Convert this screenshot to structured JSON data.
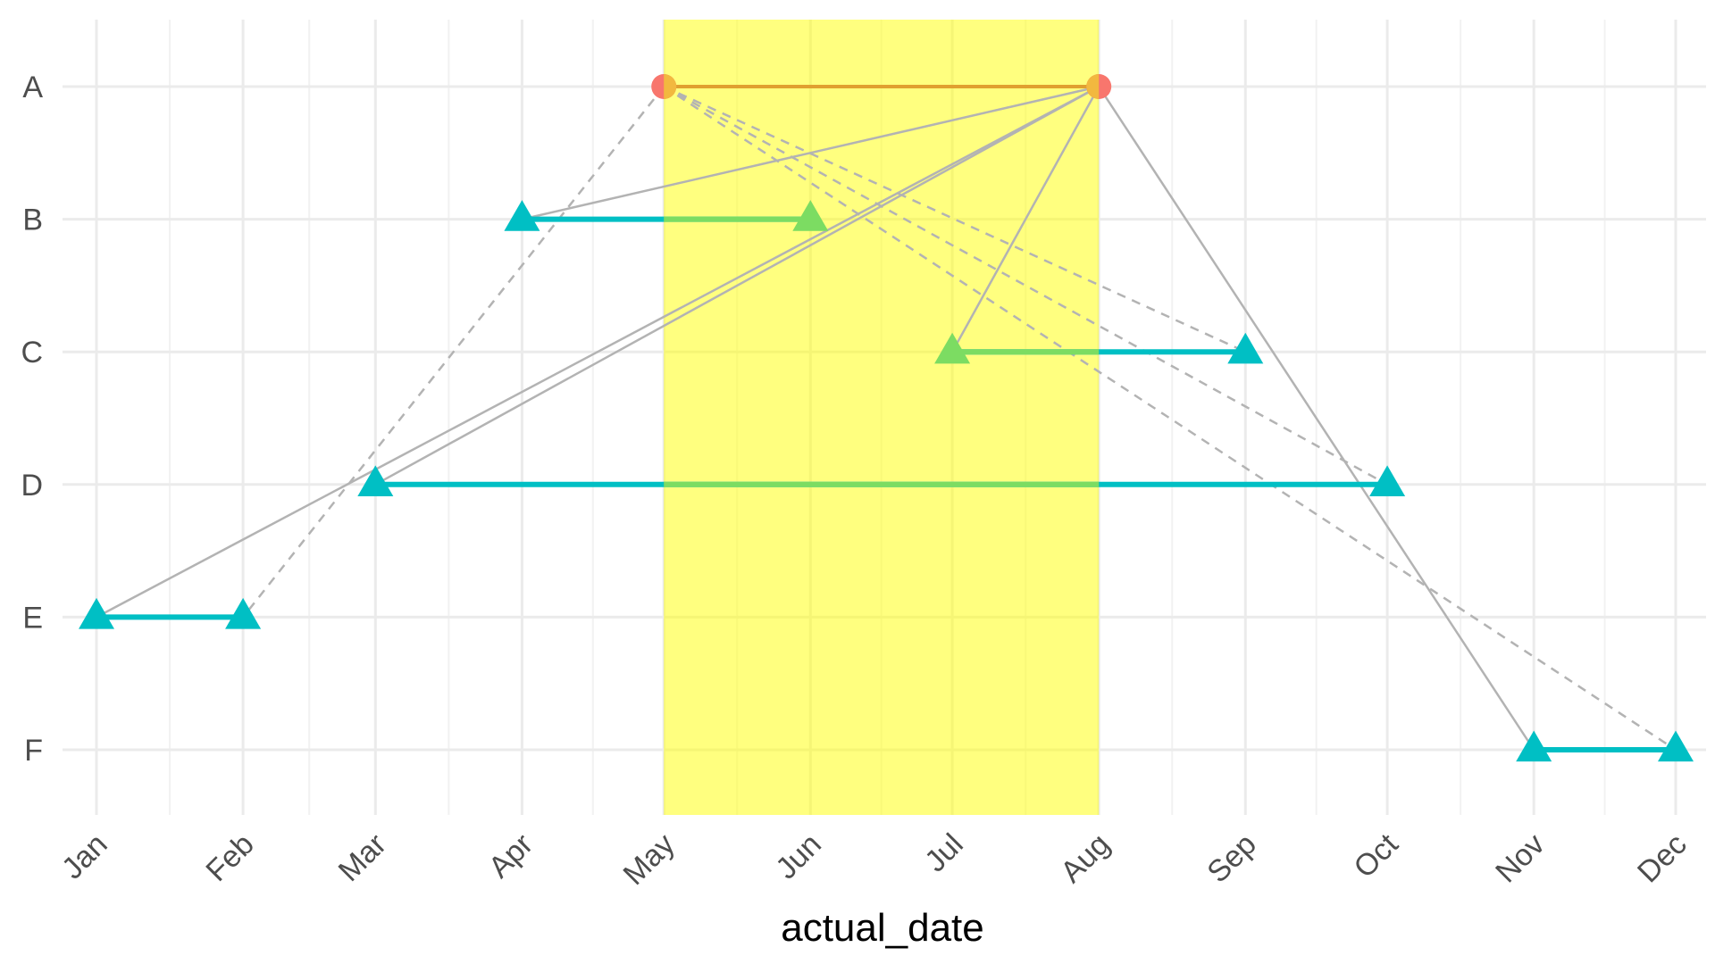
{
  "chart_data": {
    "type": "line",
    "title": "",
    "xlabel": "actual_date",
    "ylabel": "",
    "x_tick_labels": [
      "Jan",
      "Feb",
      "Mar",
      "Apr",
      "May",
      "Jun",
      "Jul",
      "Aug",
      "Sep",
      "Oct",
      "Nov",
      "Dec"
    ],
    "y_categories": [
      "A",
      "B",
      "C",
      "D",
      "E",
      "F"
    ],
    "xlim": [
      "2021-01-01",
      "2021-12-01"
    ],
    "grid": true,
    "legend": "none",
    "highlight_band": {
      "from": "2021-05-01",
      "to": "2021-08-01",
      "color": "#ffff00",
      "opacity": 0.5
    },
    "series": [
      {
        "values": [
          {
            "task": "A",
            "start": "2021-05-01",
            "end": "2021-08-01",
            "marker": "circle"
          },
          {
            "task": "B",
            "start": "2021-04-01",
            "end": "2021-06-01",
            "marker": "triangle"
          },
          {
            "task": "C",
            "start": "2021-07-01",
            "end": "2021-09-01",
            "marker": "triangle"
          },
          {
            "task": "D",
            "start": "2021-03-01",
            "end": "2021-10-01",
            "marker": "triangle"
          },
          {
            "task": "E",
            "start": "2021-01-01",
            "end": "2021-02-01",
            "marker": "triangle"
          },
          {
            "task": "F",
            "start": "2021-11-01",
            "end": "2021-12-01",
            "marker": "triangle"
          }
        ]
      }
    ],
    "dependencies": [
      {
        "from_task": "A",
        "from_date": "2021-08-01",
        "to_task": "B",
        "to_date": "2021-04-01",
        "style": "solid"
      },
      {
        "from_task": "A",
        "from_date": "2021-08-01",
        "to_task": "C",
        "to_date": "2021-07-01",
        "style": "solid"
      },
      {
        "from_task": "A",
        "from_date": "2021-08-01",
        "to_task": "D",
        "to_date": "2021-03-01",
        "style": "solid"
      },
      {
        "from_task": "A",
        "from_date": "2021-08-01",
        "to_task": "E",
        "to_date": "2021-01-01",
        "style": "solid"
      },
      {
        "from_task": "A",
        "from_date": "2021-08-01",
        "to_task": "F",
        "to_date": "2021-11-01",
        "style": "solid"
      },
      {
        "from_task": "A",
        "from_date": "2021-05-01",
        "to_task": "E",
        "to_date": "2021-02-01",
        "style": "dashed"
      },
      {
        "from_task": "A",
        "from_date": "2021-05-01",
        "to_task": "C",
        "to_date": "2021-09-01",
        "style": "dashed"
      },
      {
        "from_task": "A",
        "from_date": "2021-05-01",
        "to_task": "D",
        "to_date": "2021-10-01",
        "style": "dashed"
      },
      {
        "from_task": "A",
        "from_date": "2021-05-01",
        "to_task": "F",
        "to_date": "2021-12-01",
        "style": "dashed"
      }
    ],
    "colors": {
      "interval_line": "#00bfc4",
      "interval_line_in_band": "#7cdc62",
      "task_a_line": "#e0a030",
      "task_a_point": "#f8766d",
      "task_a_point_in_band": "#f2b83f",
      "marker": "#00bfc4",
      "marker_in_band": "#7cdc62",
      "dependency": "#b3b3b3",
      "grid_major": "#ebebeb",
      "grid_minor": "#f2f2f2"
    }
  }
}
